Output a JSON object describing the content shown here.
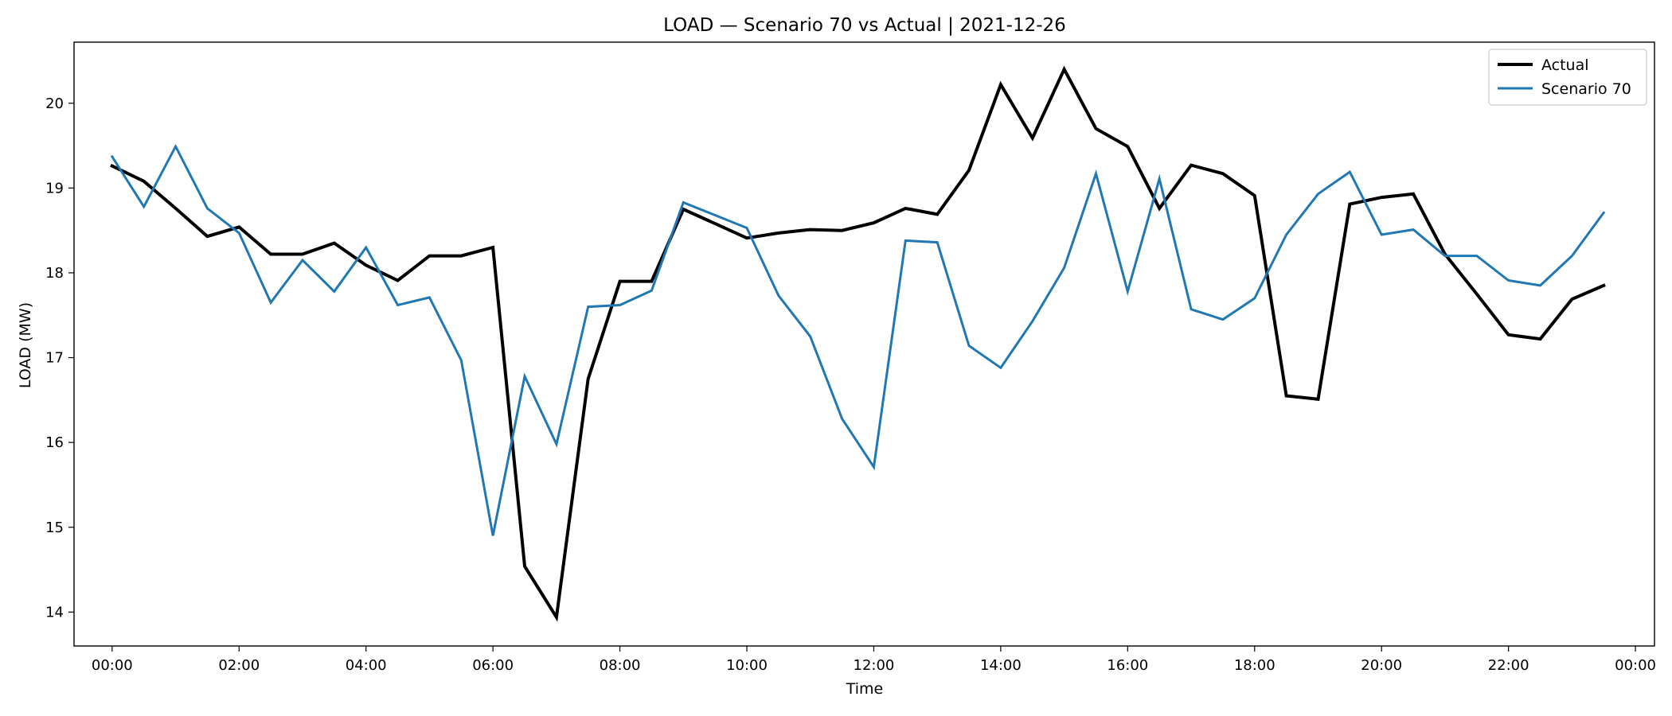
{
  "chart_data": {
    "type": "line",
    "title": "LOAD — Scenario 70 vs Actual | 2021-12-26",
    "xlabel": "Time",
    "ylabel": "LOAD (MW)",
    "x": [
      "00:00",
      "00:30",
      "01:00",
      "01:30",
      "02:00",
      "02:30",
      "03:00",
      "03:30",
      "04:00",
      "04:30",
      "05:00",
      "05:30",
      "06:00",
      "06:30",
      "07:00",
      "07:30",
      "08:00",
      "08:30",
      "09:00",
      "09:30",
      "10:00",
      "10:30",
      "11:00",
      "11:30",
      "12:00",
      "12:30",
      "13:00",
      "13:30",
      "14:00",
      "14:30",
      "15:00",
      "15:30",
      "16:00",
      "16:30",
      "17:00",
      "17:30",
      "18:00",
      "18:30",
      "19:00",
      "19:30",
      "20:00",
      "20:30",
      "21:00",
      "21:30",
      "22:00",
      "22:30",
      "23:00",
      "23:30"
    ],
    "x_ticks": [
      "00:00",
      "02:00",
      "04:00",
      "06:00",
      "08:00",
      "10:00",
      "12:00",
      "14:00",
      "16:00",
      "18:00",
      "20:00",
      "22:00",
      "00:00"
    ],
    "y_ticks": [
      14,
      15,
      16,
      17,
      18,
      19,
      20
    ],
    "ylim": [
      13.6,
      20.72
    ],
    "grid": false,
    "legend_position": "top-right",
    "series": [
      {
        "name": "Actual",
        "color": "#000000",
        "values": [
          19.26,
          19.08,
          18.76,
          18.43,
          18.54,
          18.22,
          18.22,
          18.35,
          18.09,
          17.91,
          18.2,
          18.2,
          18.3,
          14.54,
          13.94,
          16.75,
          17.9,
          17.9,
          18.75,
          18.58,
          18.41,
          18.47,
          18.51,
          18.5,
          18.59,
          18.76,
          18.69,
          19.21,
          20.22,
          19.59,
          20.4,
          19.7,
          19.49,
          18.76,
          19.27,
          19.17,
          18.91,
          16.55,
          16.51,
          18.81,
          18.89,
          18.93,
          18.22,
          17.75,
          17.27,
          17.22,
          17.69,
          17.85
        ]
      },
      {
        "name": "Scenario 70",
        "color": "#1f77b4",
        "values": [
          19.37,
          18.78,
          19.49,
          18.76,
          18.47,
          17.65,
          18.15,
          17.78,
          18.3,
          17.62,
          17.71,
          16.97,
          14.9,
          16.78,
          15.98,
          17.6,
          17.62,
          17.79,
          18.83,
          18.68,
          18.53,
          17.73,
          17.25,
          16.28,
          15.71,
          18.38,
          18.36,
          17.14,
          16.88,
          17.43,
          18.06,
          19.17,
          17.78,
          19.11,
          17.57,
          17.45,
          17.7,
          18.45,
          18.93,
          19.19,
          18.45,
          18.51,
          18.2,
          18.2,
          17.91,
          17.85,
          18.2,
          18.71
        ]
      }
    ]
  }
}
